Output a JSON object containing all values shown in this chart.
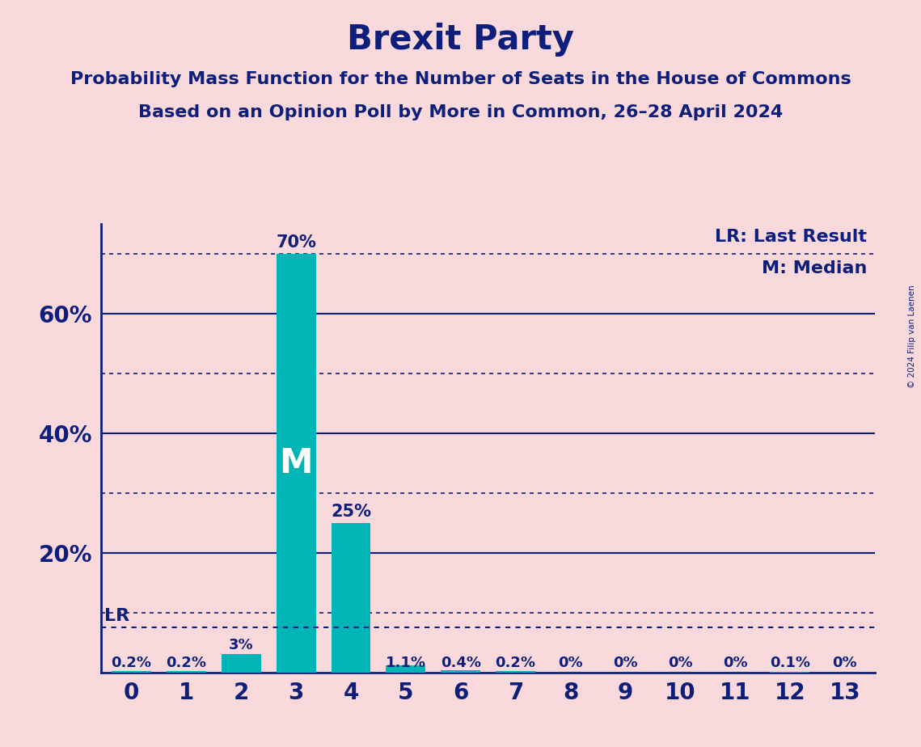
{
  "title": "Brexit Party",
  "subtitle1": "Probability Mass Function for the Number of Seats in the House of Commons",
  "subtitle2": "Based on an Opinion Poll by More in Common, 26–28 April 2024",
  "copyright": "© 2024 Filip van Laenen",
  "categories": [
    0,
    1,
    2,
    3,
    4,
    5,
    6,
    7,
    8,
    9,
    10,
    11,
    12,
    13
  ],
  "values": [
    0.2,
    0.2,
    3.0,
    70.0,
    25.0,
    1.1,
    0.4,
    0.2,
    0.0,
    0.0,
    0.0,
    0.0,
    0.1,
    0.0
  ],
  "bar_color": "#00B5B5",
  "background_color": "#FAD9DC",
  "text_color": "#0D1F7A",
  "ytick_labels": [
    "20%",
    "40%",
    "60%"
  ],
  "ytick_values": [
    20,
    40,
    60
  ],
  "ylim": [
    0,
    75
  ],
  "lr_value": 7.5,
  "lr_label": "LR",
  "median_seat": 3,
  "median_label": "M",
  "median_y": 35,
  "legend_lr": "LR: Last Result",
  "legend_m": "M: Median",
  "value_labels": [
    "0.2%",
    "0.2%",
    "3%",
    "70%",
    "25%",
    "1.1%",
    "0.4%",
    "0.2%",
    "0%",
    "0%",
    "0%",
    "0%",
    "0.1%",
    "0%"
  ],
  "solid_lines": [
    20,
    40,
    60
  ],
  "dotted_lines": [
    10,
    30,
    50,
    70
  ],
  "bar_width": 0.72,
  "xlim_left": -0.55,
  "xlim_right": 13.55,
  "title_fontsize": 30,
  "subtitle_fontsize": 16,
  "tick_fontsize": 20,
  "label_fontsize": 13,
  "legend_fontsize": 16
}
